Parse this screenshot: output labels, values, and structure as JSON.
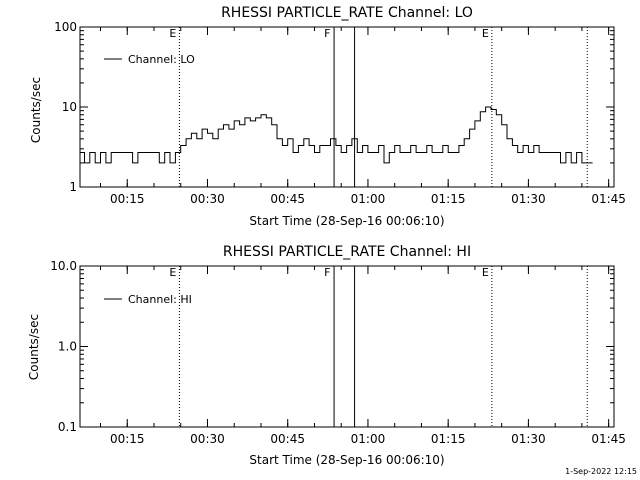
{
  "footer_timestamp": "1-Sep-2022 12:15",
  "chart_data": [
    {
      "type": "line",
      "title": "RHESSI PARTICLE_RATE Channel: LO",
      "xlabel": "Start Time (28-Sep-16 00:06:10)",
      "ylabel": "Counts/sec",
      "yscale": "log",
      "ylim": [
        1,
        100
      ],
      "xlim": [
        "00:06:10",
        "01:46:00"
      ],
      "x_ticks": [
        "00:15",
        "00:30",
        "00:45",
        "01:00",
        "01:15",
        "01:30",
        "01:45"
      ],
      "y_ticks": [
        "1",
        "10",
        "100"
      ],
      "legend": {
        "placement": "top-left",
        "entries": [
          "Channel: LO"
        ]
      },
      "grid": false,
      "markers": [
        {
          "time": "00:24:45",
          "label": "E",
          "style": "dotted"
        },
        {
          "time": "00:53:40",
          "label": "F",
          "style": "solid"
        },
        {
          "time": "00:57:30",
          "label": "",
          "style": "solid"
        },
        {
          "time": "01:23:10",
          "label": "E",
          "style": "dotted"
        },
        {
          "time": "01:41:00",
          "label": "",
          "style": "dotted"
        }
      ],
      "series": [
        {
          "name": "Channel: LO",
          "x": [
            "00:06:10",
            "00:07:00",
            "00:08:00",
            "00:09:00",
            "00:10:00",
            "00:11:00",
            "00:12:00",
            "00:13:00",
            "00:14:00",
            "00:15:00",
            "00:16:00",
            "00:17:00",
            "00:18:00",
            "00:19:00",
            "00:20:00",
            "00:21:00",
            "00:22:00",
            "00:23:00",
            "00:24:00",
            "00:25:00",
            "00:26:00",
            "00:27:00",
            "00:28:00",
            "00:29:00",
            "00:30:00",
            "00:31:00",
            "00:32:00",
            "00:33:00",
            "00:34:00",
            "00:35:00",
            "00:36:00",
            "00:37:00",
            "00:38:00",
            "00:39:00",
            "00:40:00",
            "00:41:00",
            "00:42:00",
            "00:43:00",
            "00:44:00",
            "00:45:00",
            "00:46:00",
            "00:47:00",
            "00:48:00",
            "00:49:00",
            "00:50:00",
            "00:51:00",
            "00:52:00",
            "00:53:00",
            "00:54:00",
            "00:55:00",
            "00:56:00",
            "00:57:00",
            "00:58:00",
            "00:59:00",
            "01:00:00",
            "01:01:00",
            "01:02:00",
            "01:03:00",
            "01:04:00",
            "01:05:00",
            "01:06:00",
            "01:07:00",
            "01:08:00",
            "01:09:00",
            "01:10:00",
            "01:11:00",
            "01:12:00",
            "01:13:00",
            "01:14:00",
            "01:15:00",
            "01:16:00",
            "01:17:00",
            "01:18:00",
            "01:19:00",
            "01:20:00",
            "01:21:00",
            "01:22:00",
            "01:23:00",
            "01:24:00",
            "01:25:00",
            "01:26:00",
            "01:27:00",
            "01:28:00",
            "01:29:00",
            "01:30:00",
            "01:31:00",
            "01:32:00",
            "01:33:00",
            "01:34:00",
            "01:35:00",
            "01:36:00",
            "01:37:00",
            "01:38:00",
            "01:39:00",
            "01:40:00",
            "01:41:00"
          ],
          "y": [
            2.7,
            2.0,
            2.7,
            2.0,
            2.7,
            2.0,
            2.7,
            2.7,
            2.7,
            2.7,
            2.0,
            2.7,
            2.7,
            2.7,
            2.7,
            2.0,
            2.7,
            2.0,
            2.7,
            3.3,
            4.0,
            4.7,
            4.0,
            5.3,
            4.7,
            4.0,
            5.3,
            6.0,
            5.3,
            6.7,
            6.0,
            7.3,
            6.7,
            7.3,
            8.0,
            7.3,
            6.0,
            4.0,
            3.3,
            4.0,
            2.7,
            3.3,
            4.0,
            3.3,
            2.7,
            3.3,
            3.3,
            4.0,
            3.3,
            2.7,
            3.3,
            4.0,
            2.7,
            3.3,
            2.7,
            2.7,
            3.3,
            2.0,
            2.7,
            3.3,
            2.7,
            2.7,
            3.3,
            2.7,
            2.7,
            3.3,
            2.7,
            2.7,
            3.3,
            2.7,
            2.7,
            3.3,
            4.0,
            5.3,
            6.7,
            8.7,
            10.0,
            9.3,
            8.0,
            6.0,
            4.0,
            3.3,
            2.7,
            3.3,
            2.7,
            3.3,
            2.7,
            2.7,
            2.7,
            2.7,
            2.0,
            2.7,
            2.0,
            2.7,
            2.0,
            2.0
          ]
        }
      ]
    },
    {
      "type": "line",
      "title": "RHESSI PARTICLE_RATE Channel: HI",
      "xlabel": "Start Time (28-Sep-16 00:06:10)",
      "ylabel": "Counts/sec",
      "yscale": "log",
      "ylim": [
        0.1,
        10
      ],
      "xlim": [
        "00:06:10",
        "01:46:00"
      ],
      "x_ticks": [
        "00:15",
        "00:30",
        "00:45",
        "01:00",
        "01:15",
        "01:30",
        "01:45"
      ],
      "y_ticks": [
        "0.1",
        "1.0",
        "10.0"
      ],
      "legend": {
        "placement": "top-left",
        "entries": [
          "Channel: HI"
        ]
      },
      "grid": false,
      "markers": [
        {
          "time": "00:24:45",
          "label": "E",
          "style": "dotted"
        },
        {
          "time": "00:53:40",
          "label": "F",
          "style": "solid"
        },
        {
          "time": "00:57:30",
          "label": "",
          "style": "solid"
        },
        {
          "time": "01:23:10",
          "label": "E",
          "style": "dotted"
        },
        {
          "time": "01:41:00",
          "label": "",
          "style": "dotted"
        }
      ],
      "series": [
        {
          "name": "Channel: HI",
          "x": [],
          "y": []
        }
      ]
    }
  ]
}
